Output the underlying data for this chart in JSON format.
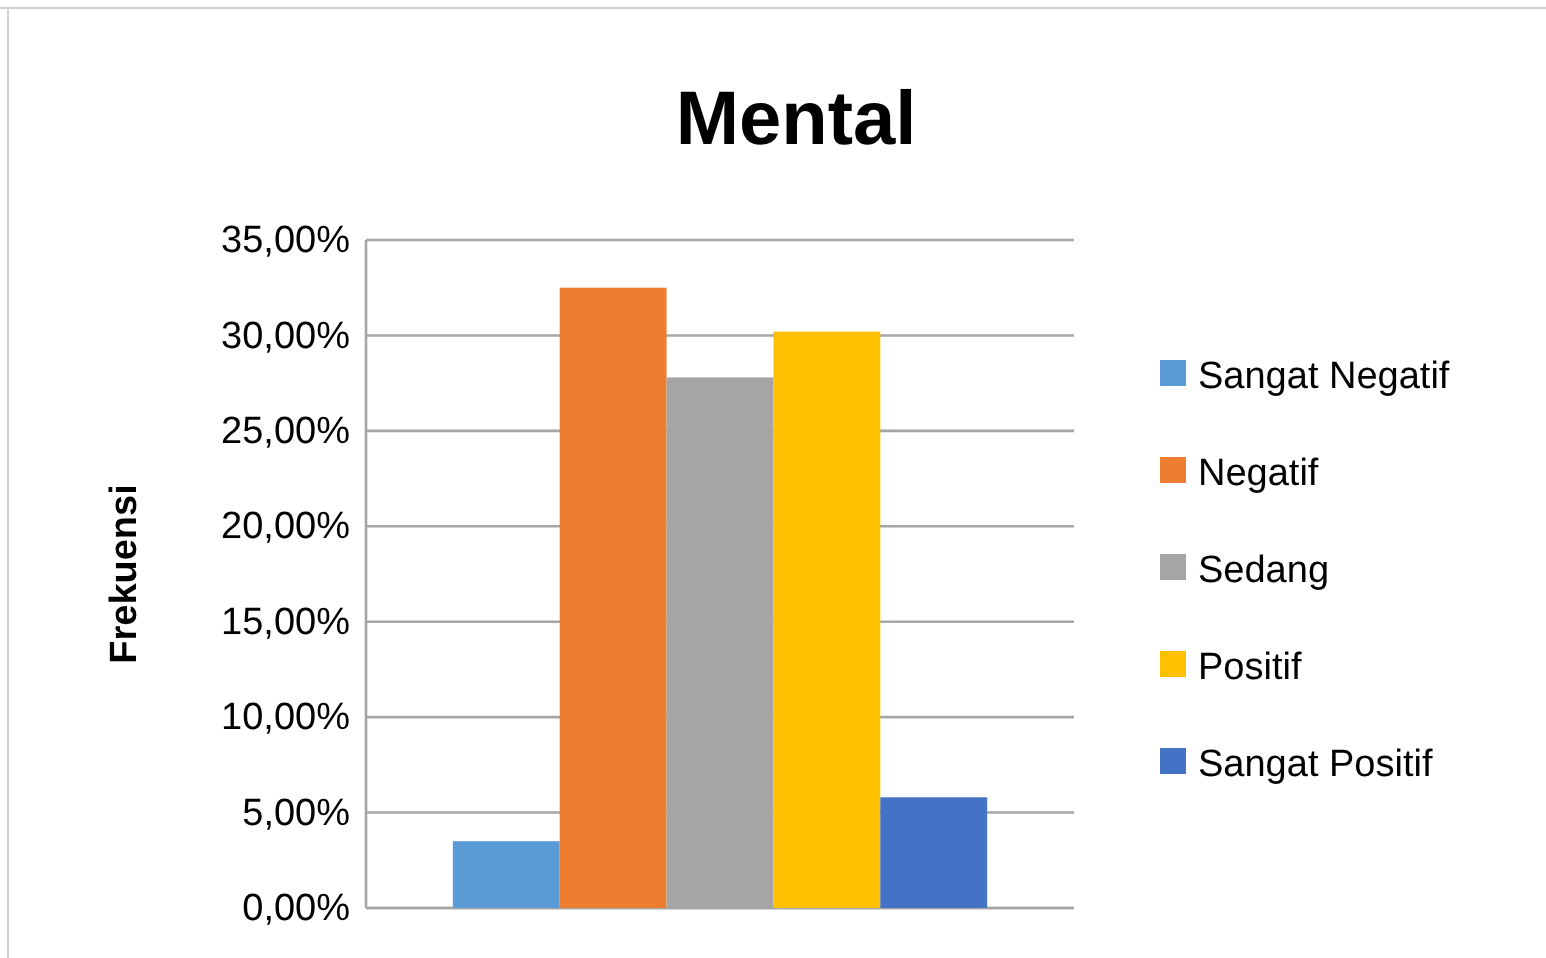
{
  "chart_data": {
    "type": "bar",
    "title": "Mental",
    "ylabel": "Frekuensi",
    "categories": [
      null
    ],
    "series": [
      {
        "name": "Sangat Negatif",
        "color": "#5b9bd5",
        "values": [
          3.5
        ]
      },
      {
        "name": "Negatif",
        "color": "#ed7d31",
        "values": [
          32.5
        ]
      },
      {
        "name": "Sedang",
        "color": "#a5a5a5",
        "values": [
          27.8
        ]
      },
      {
        "name": "Positif",
        "color": "#ffc000",
        "values": [
          30.2
        ]
      },
      {
        "name": "Sangat Positif",
        "color": "#4472c4",
        "values": [
          5.8
        ]
      }
    ],
    "ylim": [
      0,
      35
    ],
    "yticks": [
      {
        "value": 0,
        "label": "0,00%"
      },
      {
        "value": 5,
        "label": "5,00%"
      },
      {
        "value": 10,
        "label": "10,00%"
      },
      {
        "value": 15,
        "label": "15,00%"
      },
      {
        "value": 20,
        "label": "20,00%"
      },
      {
        "value": 25,
        "label": "25,00%"
      },
      {
        "value": 30,
        "label": "30,00%"
      },
      {
        "value": 35,
        "label": "35,00%"
      }
    ],
    "grid": "y",
    "legend": "right"
  }
}
